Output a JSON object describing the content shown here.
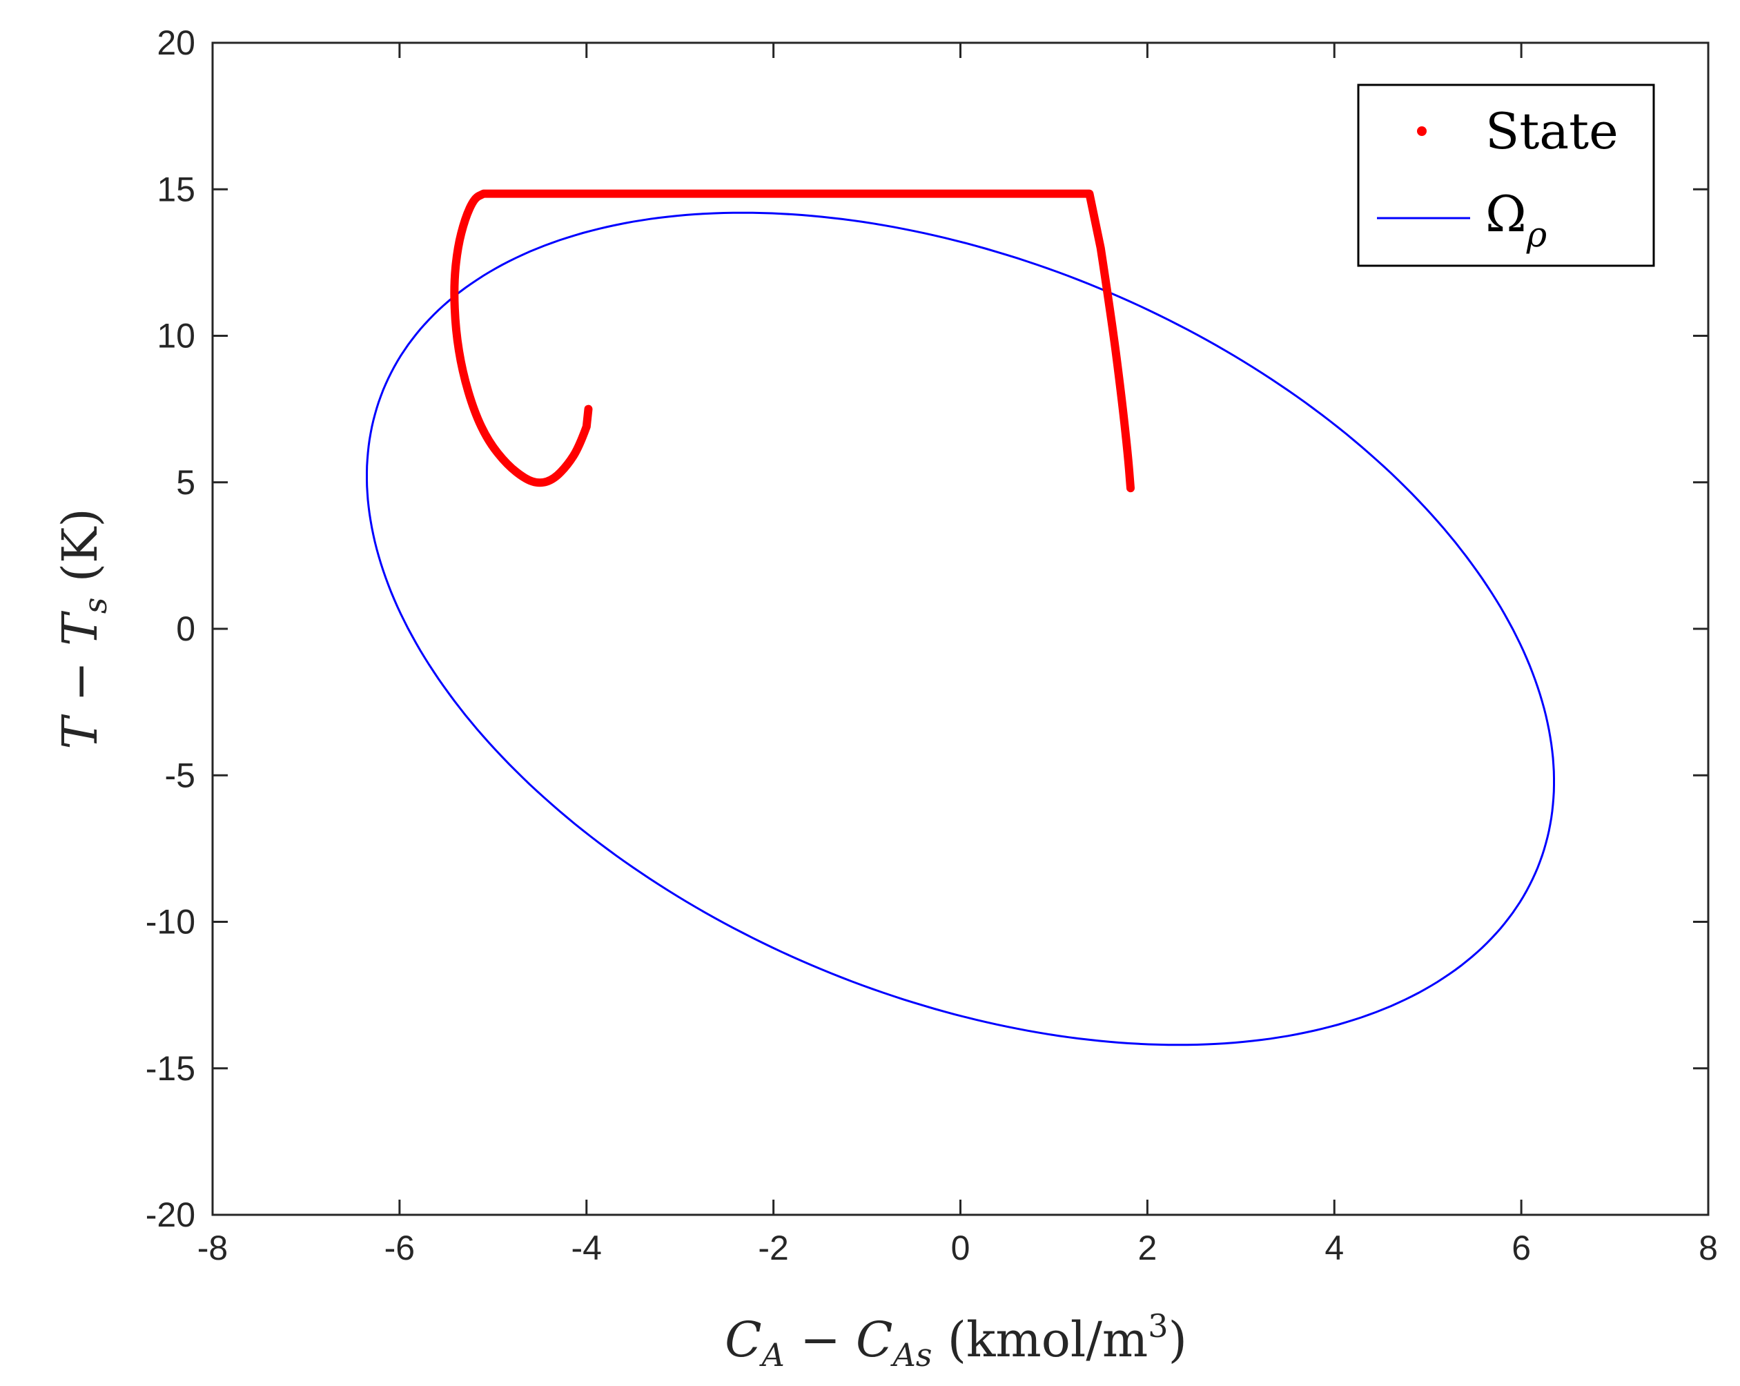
{
  "chart_data": {
    "type": "line",
    "xlim": [
      -8,
      8
    ],
    "ylim": [
      -20,
      20
    ],
    "xticks": [
      -8,
      -6,
      -4,
      -2,
      0,
      2,
      4,
      6,
      8
    ],
    "yticks": [
      -20,
      -15,
      -10,
      -5,
      0,
      5,
      10,
      15,
      20
    ],
    "xlabel": {
      "main1": "C",
      "sub1": "A",
      "minus": " − ",
      "main2": "C",
      "sub2": "As",
      "unit": " (kmol/m",
      "sup": "3",
      "close": ")"
    },
    "ylabel": {
      "main1": "T",
      "minus": " − ",
      "main2": "T",
      "sub2": "s",
      "unit": " (K)"
    },
    "legend": {
      "state": "State",
      "omega": "Ω",
      "omega_sub": "ρ"
    },
    "colors": {
      "state": "#ff0000",
      "omega": "#0000ff",
      "axis": "#262626"
    },
    "series": [
      {
        "name": "State",
        "points": [
          [
            -3.98,
            7.5
          ],
          [
            -4.0,
            6.9
          ],
          [
            -4.08,
            6.2
          ],
          [
            -4.2,
            5.6
          ],
          [
            -4.35,
            5.1
          ],
          [
            -4.5,
            4.95
          ],
          [
            -4.65,
            5.1
          ],
          [
            -4.85,
            5.6
          ],
          [
            -5.05,
            6.4
          ],
          [
            -5.2,
            7.4
          ],
          [
            -5.33,
            8.8
          ],
          [
            -5.4,
            10.2
          ],
          [
            -5.42,
            11.7
          ],
          [
            -5.38,
            13.0
          ],
          [
            -5.3,
            14.0
          ],
          [
            -5.2,
            14.7
          ],
          [
            -5.1,
            14.85
          ],
          [
            -3.0,
            14.85
          ],
          [
            0.0,
            14.85
          ],
          [
            1.38,
            14.85
          ],
          [
            1.5,
            13.0
          ],
          [
            1.62,
            10.5
          ],
          [
            1.72,
            8.0
          ],
          [
            1.79,
            6.0
          ],
          [
            1.82,
            4.8
          ]
        ]
      },
      {
        "name": "Ω_ρ",
        "ellipse": {
          "center": [
            0.0,
            0.0
          ],
          "extreme_points": [
            [
              6.35,
              -5.1
            ],
            [
              2.4,
              -14.2
            ],
            [
              -6.35,
              5.1
            ],
            [
              -2.4,
              14.2
            ]
          ]
        }
      }
    ]
  }
}
